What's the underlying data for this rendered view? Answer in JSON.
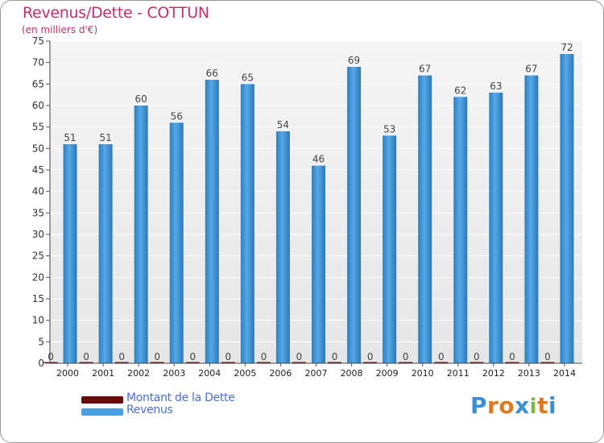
{
  "chart_data": {
    "type": "bar",
    "title": "Revenus/Dette - COTTUN",
    "subtitle": "(en milliers d'€)",
    "categories": [
      "2000",
      "2001",
      "2002",
      "2003",
      "2004",
      "2005",
      "2006",
      "2007",
      "2008",
      "2009",
      "2010",
      "2011",
      "2012",
      "2013",
      "2014"
    ],
    "series": [
      {
        "name": "Montant de la Dette",
        "color": "#6b0a0a",
        "values": [
          0,
          0,
          0,
          0,
          0,
          0,
          0,
          0,
          0,
          0,
          0,
          0,
          0,
          0,
          0
        ]
      },
      {
        "name": "Revenus",
        "color": "#4a9fe2",
        "values": [
          51,
          51,
          60,
          56,
          66,
          65,
          54,
          46,
          69,
          53,
          67,
          62,
          63,
          67,
          72
        ]
      }
    ],
    "ylim": [
      0,
      75
    ],
    "yticks": [
      0,
      5,
      10,
      15,
      20,
      25,
      30,
      35,
      40,
      45,
      50,
      55,
      60,
      65,
      70,
      75
    ],
    "xlabel": "",
    "ylabel": "",
    "grid": true,
    "legend": "bottom-left"
  },
  "legend": {
    "items": [
      {
        "label": "Montant de la Dette",
        "color": "#6b0a0a"
      },
      {
        "label": "Revenus",
        "color": "#4a9fe2"
      }
    ]
  },
  "logo": {
    "letters": [
      "P",
      "r",
      "o",
      "x",
      "i",
      "t",
      "i"
    ],
    "colors": [
      "#3b8fd8",
      "#e07a1f",
      "#e07a1f",
      "#3b8fd8",
      "#7cb83a",
      "#e07a1f",
      "#3b8fd8"
    ]
  }
}
